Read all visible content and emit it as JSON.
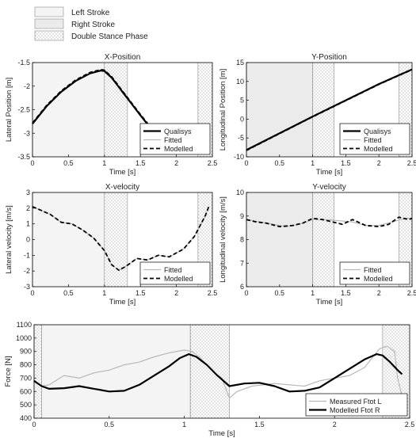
{
  "legend_top": [
    {
      "label": "Left Stroke",
      "fill": "#f4f4f4",
      "pattern": false
    },
    {
      "label": "Right Stroke",
      "fill": "#ebebeb",
      "pattern": false
    },
    {
      "label": "Double Stance Phase",
      "fill": "#ffffff",
      "pattern": true
    }
  ],
  "colors": {
    "qualisys": "#000000",
    "fitted": "#b8b8b8",
    "modelled": "#000000",
    "measured": "#b8b8b8",
    "left_stroke": "#f4f4f4",
    "right_stroke": "#ebebeb",
    "dots": "#999999"
  },
  "chart_data": [
    {
      "type": "line",
      "title": "X-Position",
      "xlabel": "Time [s]",
      "ylabel": "Lateral Position [m]",
      "xlim": [
        0,
        2.5
      ],
      "ylim": [
        -3.5,
        -1.5
      ],
      "xticks": [
        "0",
        "0.5",
        "1",
        "1.5",
        "2",
        "2.5"
      ],
      "yticks": [
        "-1.5",
        "-2",
        "-2.5",
        "-3",
        "-3.5"
      ],
      "legend_position": "bottom-right",
      "phases": [
        {
          "type": "left",
          "x": [
            0,
            1.0
          ]
        },
        {
          "type": "double",
          "x": [
            1.0,
            1.32
          ]
        },
        {
          "type": "double",
          "x": [
            2.3,
            2.5
          ]
        }
      ],
      "series": [
        {
          "name": "Qualisys",
          "style": "solid-bold",
          "x": [
            0,
            0.2,
            0.4,
            0.6,
            0.8,
            0.95,
            1.0,
            1.1,
            1.3,
            1.5,
            1.75
          ],
          "y": [
            -2.8,
            -2.42,
            -2.12,
            -1.89,
            -1.73,
            -1.67,
            -1.68,
            -1.82,
            -2.22,
            -2.62,
            -3.1
          ]
        },
        {
          "name": "Fitted",
          "style": "solid-grey",
          "x": [
            0,
            0.2,
            0.4,
            0.6,
            0.8,
            0.95,
            1.0,
            1.1,
            1.3,
            1.5,
            1.75
          ],
          "y": [
            -2.8,
            -2.42,
            -2.12,
            -1.89,
            -1.73,
            -1.67,
            -1.68,
            -1.82,
            -2.22,
            -2.62,
            -3.1
          ]
        },
        {
          "name": "Modelled",
          "style": "dashed",
          "x": [
            0,
            0.2,
            0.4,
            0.6,
            0.8,
            0.95,
            1.0,
            1.1,
            1.3,
            1.5,
            1.75
          ],
          "y": [
            -2.78,
            -2.4,
            -2.1,
            -1.87,
            -1.71,
            -1.65,
            -1.66,
            -1.8,
            -2.2,
            -2.6,
            -3.08
          ]
        }
      ]
    },
    {
      "type": "line",
      "title": "Y-Position",
      "xlabel": "Time [s]",
      "ylabel": "Longitudinal Position [m]",
      "xlim": [
        0,
        2.5
      ],
      "ylim": [
        -10,
        15
      ],
      "xticks": [
        "0",
        "0.5",
        "1",
        "1.5",
        "2",
        "2.5"
      ],
      "yticks": [
        "15",
        "10",
        "5",
        "0",
        "-5",
        "-10"
      ],
      "legend_position": "bottom-right",
      "phases": [
        {
          "type": "right",
          "x": [
            0,
            1.0
          ]
        },
        {
          "type": "double",
          "x": [
            1.0,
            1.32
          ]
        },
        {
          "type": "double",
          "x": [
            2.3,
            2.5
          ]
        }
      ],
      "series": [
        {
          "name": "Qualisys",
          "style": "solid-bold",
          "x": [
            0,
            1.0,
            2.0,
            2.5
          ],
          "y": [
            -8.2,
            0.7,
            9.3,
            13.2
          ]
        },
        {
          "name": "Fitted",
          "style": "solid-grey",
          "x": [
            0,
            1.0,
            2.0,
            2.5
          ],
          "y": [
            -8.2,
            0.7,
            9.3,
            13.2
          ]
        },
        {
          "name": "Modelled",
          "style": "dashed",
          "x": [
            0,
            1.0,
            2.0,
            2.5
          ],
          "y": [
            -8.3,
            0.6,
            9.2,
            13.1
          ]
        }
      ]
    },
    {
      "type": "line",
      "title": "X-velocity",
      "xlabel": "Time [s]",
      "ylabel": "Lateral velocity [m/s]",
      "xlim": [
        0,
        2.5
      ],
      "ylim": [
        -3,
        3
      ],
      "xticks": [
        "0",
        "0.5",
        "1",
        "1.5",
        "2",
        "2.5"
      ],
      "yticks": [
        "3",
        "2",
        "1",
        "0",
        "-1",
        "-2",
        "-3"
      ],
      "legend_position": "bottom-right",
      "phases": [
        {
          "type": "left",
          "x": [
            0,
            1.0
          ]
        },
        {
          "type": "double",
          "x": [
            1.0,
            1.32
          ]
        },
        {
          "type": "double",
          "x": [
            2.3,
            2.5
          ]
        }
      ],
      "series": [
        {
          "name": "Fitted",
          "style": "solid-grey",
          "x": [
            0,
            0.1,
            0.25,
            0.4,
            0.55,
            0.7,
            0.85,
            1.0,
            1.1,
            1.2,
            1.3,
            1.45,
            1.6,
            1.75,
            1.9,
            2.1,
            2.25,
            2.4,
            2.45
          ],
          "y": [
            2.1,
            1.9,
            1.6,
            1.1,
            1.0,
            0.6,
            0.1,
            -0.7,
            -1.6,
            -1.95,
            -1.7,
            -1.2,
            -1.3,
            -1.0,
            -1.1,
            -0.6,
            0.2,
            1.5,
            2.1
          ]
        },
        {
          "name": "Modelled",
          "style": "dashed",
          "x": [
            0,
            0.1,
            0.25,
            0.4,
            0.55,
            0.7,
            0.85,
            1.0,
            1.1,
            1.2,
            1.3,
            1.45,
            1.6,
            1.75,
            1.9,
            2.1,
            2.25,
            2.4,
            2.45
          ],
          "y": [
            2.1,
            1.9,
            1.6,
            1.1,
            1.0,
            0.6,
            0.1,
            -0.7,
            -1.6,
            -1.95,
            -1.7,
            -1.2,
            -1.3,
            -1.0,
            -1.1,
            -0.6,
            0.2,
            1.5,
            2.1
          ]
        }
      ]
    },
    {
      "type": "line",
      "title": "Y-velocity",
      "xlabel": "Time [s]",
      "ylabel": "Longitudinal velocity [m/s]",
      "xlim": [
        0,
        2.5
      ],
      "ylim": [
        6,
        10
      ],
      "xticks": [
        "0",
        "0.5",
        "1",
        "1.5",
        "2",
        "2.5"
      ],
      "yticks": [
        "10",
        "9",
        "8",
        "7",
        "6"
      ],
      "legend_position": "bottom-right",
      "phases": [
        {
          "type": "right",
          "x": [
            0,
            1.0
          ]
        },
        {
          "type": "double",
          "x": [
            1.0,
            1.32
          ]
        },
        {
          "type": "double",
          "x": [
            2.3,
            2.5
          ]
        }
      ],
      "series": [
        {
          "name": "Fitted",
          "style": "solid-grey",
          "x": [
            0,
            0.2,
            0.4,
            0.6,
            0.8,
            1.0,
            1.2,
            1.4,
            1.6,
            1.8,
            2.0,
            2.2,
            2.4,
            2.5
          ],
          "y": [
            8.85,
            8.75,
            8.65,
            8.55,
            8.65,
            8.85,
            8.85,
            8.8,
            8.75,
            8.6,
            8.6,
            8.75,
            8.9,
            8.9
          ]
        },
        {
          "name": "Modelled",
          "style": "dashed",
          "x": [
            0,
            0.15,
            0.3,
            0.5,
            0.7,
            0.85,
            1.0,
            1.15,
            1.3,
            1.45,
            1.6,
            1.8,
            2.0,
            2.15,
            2.3,
            2.45,
            2.5
          ],
          "y": [
            8.85,
            8.75,
            8.7,
            8.55,
            8.6,
            8.7,
            8.9,
            8.85,
            8.75,
            8.65,
            8.85,
            8.6,
            8.55,
            8.65,
            8.95,
            8.85,
            8.9
          ]
        }
      ]
    },
    {
      "type": "line",
      "title": "",
      "xlabel": "Time [s]",
      "ylabel": "Force [N]",
      "xlim": [
        0,
        2.5
      ],
      "ylim": [
        400,
        1100
      ],
      "xticks": [
        "0",
        "0.5",
        "1",
        "1.5",
        "2",
        "2.5"
      ],
      "yticks": [
        "1100",
        "1000",
        "900",
        "800",
        "700",
        "600",
        "500",
        "400"
      ],
      "legend_position": "bottom-right",
      "phases": [
        {
          "type": "double",
          "x": [
            0,
            0.05
          ]
        },
        {
          "type": "left",
          "x": [
            0.05,
            1.04
          ]
        },
        {
          "type": "double",
          "x": [
            1.04,
            1.3
          ]
        },
        {
          "type": "double",
          "x": [
            2.32,
            2.5
          ]
        }
      ],
      "series": [
        {
          "name": "Measured Ftot L",
          "style": "solid-grey",
          "x": [
            0,
            0.05,
            0.1,
            0.2,
            0.3,
            0.4,
            0.5,
            0.6,
            0.7,
            0.8,
            0.9,
            1.0,
            1.05,
            1.1,
            1.2,
            1.25,
            1.3,
            1.35,
            1.45,
            1.6,
            1.7,
            1.8,
            1.9,
            2.0,
            2.1,
            2.2,
            2.3,
            2.35,
            2.4,
            2.42,
            2.45
          ],
          "y": [
            680,
            640,
            650,
            720,
            700,
            740,
            760,
            800,
            820,
            860,
            890,
            910,
            900,
            860,
            740,
            700,
            550,
            600,
            640,
            660,
            650,
            640,
            680,
            700,
            720,
            780,
            920,
            940,
            900,
            700,
            560
          ]
        },
        {
          "name": "Modelled Ftot R",
          "style": "solid-bold",
          "x": [
            0,
            0.05,
            0.1,
            0.2,
            0.3,
            0.4,
            0.5,
            0.6,
            0.7,
            0.8,
            0.9,
            0.97,
            1.03,
            1.08,
            1.15,
            1.22,
            1.3,
            1.4,
            1.5,
            1.6,
            1.7,
            1.8,
            1.9,
            2.0,
            2.1,
            2.2,
            2.28,
            2.32,
            2.37,
            2.42,
            2.45
          ],
          "y": [
            680,
            640,
            620,
            625,
            640,
            620,
            600,
            605,
            650,
            720,
            790,
            850,
            880,
            860,
            800,
            720,
            640,
            660,
            665,
            640,
            600,
            605,
            630,
            700,
            770,
            840,
            880,
            870,
            820,
            760,
            730
          ]
        }
      ]
    }
  ]
}
